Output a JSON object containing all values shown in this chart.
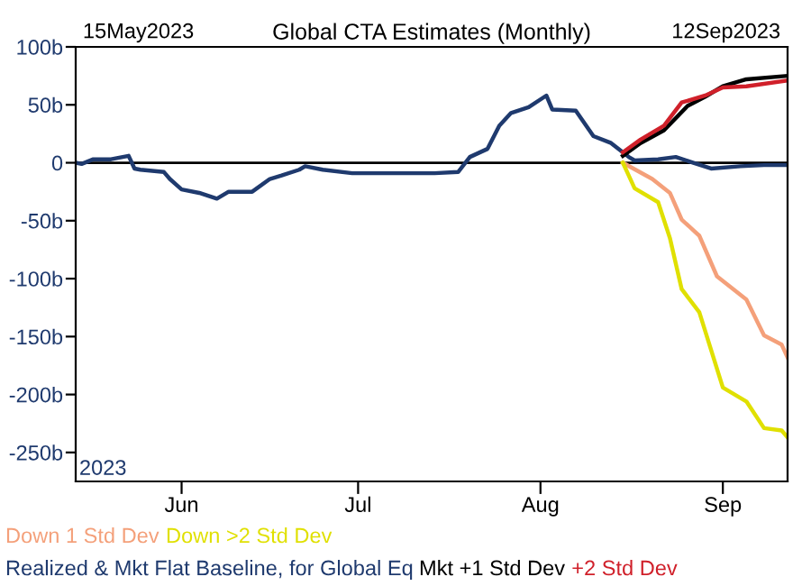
{
  "chart_data": {
    "type": "line",
    "title": "Global CTA Estimates (Monthly)",
    "annotations": [
      "15May2023",
      "12Sep2023",
      "2023"
    ],
    "xlim": [
      "2023-05-14",
      "2023-09-12"
    ],
    "xticks": [
      {
        "value": "2023-06-01",
        "label": "Jun"
      },
      {
        "value": "2023-07-01",
        "label": "Jul"
      },
      {
        "value": "2023-08-01",
        "label": "Aug"
      },
      {
        "value": "2023-09-01",
        "label": "Sep"
      }
    ],
    "ylim": [
      -275,
      100
    ],
    "yticks": [
      {
        "value": 100,
        "label": "100b"
      },
      {
        "value": 50,
        "label": "50b"
      },
      0,
      {
        "value": -50,
        "label": "-50b"
      },
      {
        "value": -100,
        "label": "-100b"
      },
      {
        "value": -150,
        "label": "-150b"
      },
      {
        "value": -200,
        "label": "-200b"
      },
      {
        "value": -250,
        "label": "-250b"
      }
    ],
    "ref_lines": [
      {
        "axis": "y",
        "value": 0,
        "color": "#000000"
      }
    ],
    "grid": false,
    "legend": "bottom",
    "series": [
      {
        "name": "Down 1 Std Dev",
        "color": "#f4a07a",
        "x": [
          "2023-08-15",
          "2023-08-20",
          "2023-08-23",
          "2023-08-25",
          "2023-08-28",
          "2023-08-31",
          "2023-09-05",
          "2023-09-08",
          "2023-09-11",
          "2023-09-12"
        ],
        "values": [
          0,
          -14,
          -26,
          -49,
          -63,
          -98,
          -118,
          -149,
          -157,
          -168
        ]
      },
      {
        "name": "Down >2 Std Dev",
        "color": "#e0e000",
        "x": [
          "2023-08-15",
          "2023-08-16",
          "2023-08-17",
          "2023-08-21",
          "2023-08-23",
          "2023-08-25",
          "2023-08-28",
          "2023-09-01",
          "2023-09-05",
          "2023-09-08",
          "2023-09-11",
          "2023-09-12"
        ],
        "values": [
          0,
          -11,
          -22,
          -34,
          -65,
          -109,
          -129,
          -194,
          -206,
          -229,
          -231,
          -237
        ]
      },
      {
        "name": "Realized & Mkt Flat Baseline, for Global Eq",
        "color": "#1f3a6e",
        "x": [
          "2023-05-14",
          "2023-05-15",
          "2023-05-17",
          "2023-05-20",
          "2023-05-23",
          "2023-05-24",
          "2023-05-25",
          "2023-05-29",
          "2023-05-30",
          "2023-06-01",
          "2023-06-04",
          "2023-06-07",
          "2023-06-09",
          "2023-06-13",
          "2023-06-16",
          "2023-06-18",
          "2023-06-21",
          "2023-06-22",
          "2023-06-25",
          "2023-06-30",
          "2023-07-04",
          "2023-07-09",
          "2023-07-14",
          "2023-07-18",
          "2023-07-20",
          "2023-07-23",
          "2023-07-25",
          "2023-07-27",
          "2023-07-30",
          "2023-08-02",
          "2023-08-03",
          "2023-08-07",
          "2023-08-10",
          "2023-08-13",
          "2023-08-16",
          "2023-08-17",
          "2023-08-21",
          "2023-08-24",
          "2023-08-27",
          "2023-08-30",
          "2023-09-04",
          "2023-09-08",
          "2023-09-12"
        ],
        "values": [
          0,
          -1,
          3,
          3,
          6,
          -5,
          -6,
          -8,
          -14,
          -23,
          -26,
          -31,
          -25,
          -25,
          -14,
          -11,
          -6,
          -3,
          -6,
          -9,
          -9,
          -9,
          -9,
          -8,
          5,
          12,
          32,
          43,
          48,
          58,
          46,
          45,
          23,
          17,
          5,
          2,
          3,
          5,
          0,
          -5,
          -3,
          -2,
          -2
        ]
      },
      {
        "name": "Mkt +1 Std Dev",
        "color": "#000000",
        "x": [
          "2023-08-15",
          "2023-08-18",
          "2023-08-22",
          "2023-08-26",
          "2023-08-29",
          "2023-09-01",
          "2023-09-05",
          "2023-09-12"
        ],
        "values": [
          6,
          17,
          28,
          49,
          57,
          66,
          72,
          75
        ]
      },
      {
        "name": "+2 Std Dev",
        "color": "#d0202a",
        "x": [
          "2023-08-15",
          "2023-08-18",
          "2023-08-22",
          "2023-08-25",
          "2023-08-29",
          "2023-09-01",
          "2023-09-05",
          "2023-09-12"
        ],
        "values": [
          9,
          20,
          32,
          52,
          58,
          65,
          66,
          71
        ]
      }
    ]
  }
}
